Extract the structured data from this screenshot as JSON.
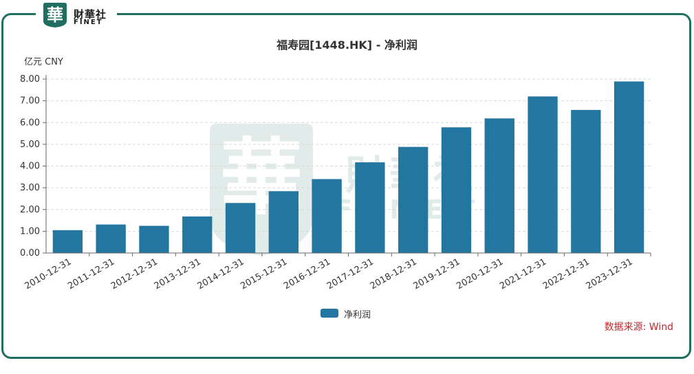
{
  "brand": {
    "seal_char": "華",
    "name_cn": "財華社",
    "name_en": "FINET",
    "frame_color": "#1f6e5f"
  },
  "unit_label": "亿元  CNY",
  "source_note": "数据来源: Wind",
  "chart_data": {
    "type": "bar",
    "title": "福寿园[1448.HK] - 净利润",
    "xlabel": "",
    "ylabel": "亿元  CNY",
    "categories": [
      "2010-12-31",
      "2011-12-31",
      "2012-12-31",
      "2013-12-31",
      "2014-12-31",
      "2015-12-31",
      "2016-12-31",
      "2017-12-31",
      "2018-12-31",
      "2019-12-31",
      "2020-12-31",
      "2021-12-31",
      "2022-12-31",
      "2023-12-31"
    ],
    "series": [
      {
        "name": "净利润",
        "color": "#23769f",
        "values": [
          1.05,
          1.31,
          1.25,
          1.68,
          2.3,
          2.84,
          3.4,
          4.17,
          4.88,
          5.78,
          6.19,
          7.2,
          6.58,
          7.89
        ]
      }
    ],
    "ylim": [
      0,
      8
    ],
    "yticks": [
      "0.00",
      "1.00",
      "2.00",
      "3.00",
      "4.00",
      "5.00",
      "6.00",
      "7.00",
      "8.00"
    ],
    "grid": true,
    "legend_position": "bottom-center"
  }
}
